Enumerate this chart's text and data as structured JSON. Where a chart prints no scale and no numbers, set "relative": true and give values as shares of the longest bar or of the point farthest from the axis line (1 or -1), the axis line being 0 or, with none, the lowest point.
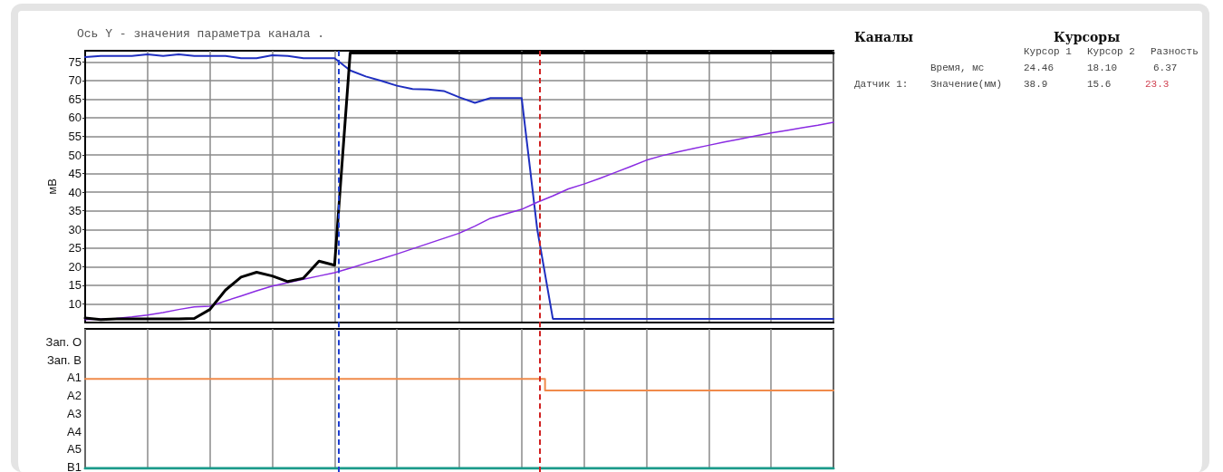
{
  "chart_data": [
    {
      "type": "line",
      "title": "Ось Y - значения параметра канала .",
      "ylabel": "мВ",
      "categories": [
        null,
        null,
        null,
        null,
        null,
        null,
        null,
        null,
        null,
        null,
        null,
        null,
        null,
        null,
        null,
        null,
        null,
        null,
        null,
        null,
        null,
        null,
        null,
        null,
        null,
        null,
        null,
        null,
        null,
        null,
        null,
        null,
        null,
        null,
        null,
        null,
        null,
        null,
        null,
        null,
        null,
        null,
        null,
        null,
        null,
        null,
        null,
        null,
        null
      ],
      "ylim": [
        5,
        78
      ],
      "yticks": [
        10,
        15,
        20,
        25,
        30,
        35,
        40,
        45,
        50,
        55,
        60,
        65,
        70,
        75
      ],
      "tick_labels": "y",
      "grid": true,
      "marker": "none",
      "line_style": "solid",
      "series": [
        {
          "color": "#1f2fc0",
          "values": [
            76.3,
            76.6,
            76.6,
            76.6,
            77.0,
            76.6,
            77.0,
            76.6,
            76.6,
            76.6,
            76.0,
            76.0,
            76.8,
            76.6,
            76.0,
            76.0,
            76.0,
            72.7,
            71.1,
            69.9,
            68.6,
            67.7,
            67.6,
            67.2,
            65.5,
            64.0,
            65.3,
            65.3,
            65.3,
            30.0,
            6.0,
            6.0,
            6.0,
            6.0,
            6.0,
            6.0,
            6.0,
            6.0,
            6.0,
            6.0,
            6.0,
            6.0,
            6.0,
            6.0,
            6.0,
            6.0,
            6.0,
            6.0,
            6.0
          ]
        },
        {
          "color": "#000000",
          "values": [
            6.2,
            5.8,
            6.0,
            6.0,
            6.0,
            6.0,
            6.0,
            6.1,
            8.5,
            13.7,
            17.2,
            18.5,
            17.5,
            16.0,
            16.9,
            21.5,
            20.4,
            77.4,
            77.4,
            77.4,
            77.4,
            77.4,
            77.4,
            77.4,
            77.4,
            77.4,
            77.4,
            77.4,
            77.4,
            77.4,
            77.4,
            77.4,
            77.4,
            77.4,
            77.4,
            77.4,
            77.4,
            77.4,
            77.4,
            77.4,
            77.4,
            77.4,
            77.4,
            77.4,
            77.4,
            77.4,
            77.4,
            77.4,
            77.4
          ]
        },
        {
          "color": "#8a2be2",
          "values": [
            5.8,
            5.9,
            6.1,
            6.5,
            7.0,
            7.7,
            8.5,
            9.2,
            9.4,
            10.8,
            12.1,
            13.5,
            14.8,
            15.7,
            16.6,
            17.5,
            18.4,
            19.6,
            20.9,
            22.1,
            23.4,
            24.8,
            26.2,
            27.6,
            29.0,
            30.9,
            33.0,
            34.2,
            35.4,
            37.3,
            39.0,
            40.9,
            42.2,
            43.7,
            45.3,
            46.9,
            48.6,
            49.8,
            50.8,
            51.7,
            52.6,
            53.5,
            54.3,
            55.1,
            55.9,
            56.6,
            57.3,
            58.0,
            58.8
          ]
        }
      ]
    },
    {
      "type": "line",
      "relative": true,
      "categories": [
        null,
        null,
        null,
        null,
        null,
        null,
        null,
        null,
        null,
        null,
        null,
        null,
        null,
        null,
        null,
        null,
        null,
        null,
        null,
        null,
        null,
        null,
        null,
        null,
        null,
        null,
        null,
        null,
        null,
        null,
        null,
        null,
        null,
        null,
        null,
        null,
        null,
        null,
        null,
        null,
        null,
        null,
        null,
        null,
        null,
        null,
        null,
        null,
        null
      ],
      "annotations": [
        "Зап. О",
        "Зап. В",
        "A1",
        "A2",
        "A3",
        "A4",
        "A5",
        "B1"
      ],
      "tick_labels": false,
      "grid": "x",
      "marker": "none",
      "line_style": "solid",
      "series": [
        {
          "color": "#f08a4b",
          "type": "step",
          "values": [
            1,
            1,
            1,
            1,
            1,
            1,
            1,
            1,
            1,
            1,
            1,
            1,
            1,
            1,
            1,
            1,
            1,
            1,
            1,
            1,
            1,
            1,
            1,
            1,
            1,
            1,
            1,
            1,
            1,
            1,
            0.87,
            0.87,
            0.87,
            0.87,
            0.87,
            0.87,
            0.87,
            0.87,
            0.87,
            0.87,
            0.87,
            0.87,
            0.87,
            0.87,
            0.87,
            0.87,
            0.87,
            0.87,
            0.87
          ]
        },
        {
          "color": "#1a9a8a",
          "values": [
            0,
            0,
            0,
            0,
            0,
            0,
            0,
            0,
            0,
            0,
            0,
            0,
            0,
            0,
            0,
            0,
            0,
            0,
            0,
            0,
            0,
            0,
            0,
            0,
            0,
            0,
            0,
            0,
            0,
            0,
            0,
            0,
            0,
            0,
            0,
            0,
            0,
            0,
            0,
            0,
            0,
            0,
            0,
            0,
            0,
            0,
            0,
            0,
            0
          ]
        }
      ]
    },
    {
      "type": "other",
      "annotations": [
        "Каналы",
        "Курсоры",
        "Курсор 1",
        "Курсор 2",
        "Разность",
        "Время, мс",
        "24.46",
        "18.10",
        "6.37",
        "Датчик 1:",
        "Значение(мм)",
        "38.9",
        "15.6",
        "23.3"
      ]
    }
  ]
}
